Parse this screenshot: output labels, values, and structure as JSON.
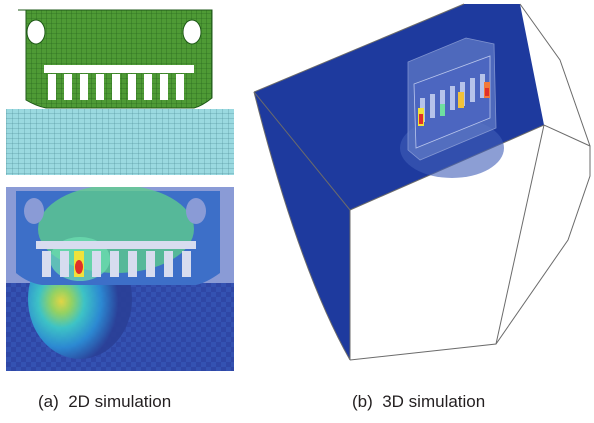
{
  "figure": {
    "panel_a": {
      "caption": "(a)  2D simulation"
    },
    "panel_b": {
      "caption": "(b)  3D simulation"
    }
  },
  "colors": {
    "mesh_green": "#3f8f2e",
    "mesh_cyan": "#8fd6de",
    "deep_blue": "#2a3f96",
    "stress_light_blue": "#8a9bd6",
    "model_blue": "#1e3a9e",
    "hotspot_red": "#e0302a",
    "hotspot_yellow": "#f2e23a"
  }
}
